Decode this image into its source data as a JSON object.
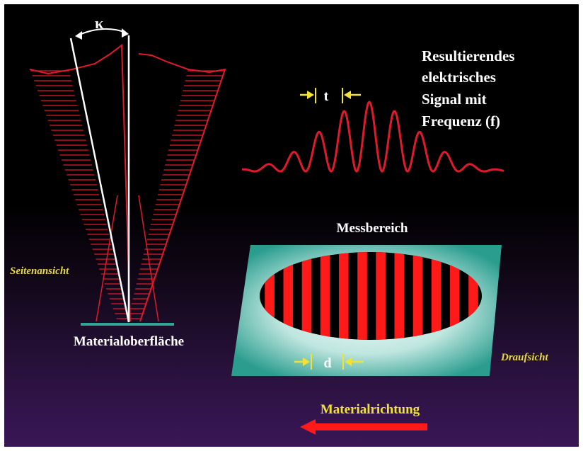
{
  "labels": {
    "kappa": "κ",
    "signal_line1": "Resultierendes",
    "signal_line2": "elektrisches",
    "signal_line3": "Signal mit",
    "signal_line4": "Frequenz (f)",
    "t_marker": "t",
    "messbereich": "Messbereich",
    "seitenansicht": "Seitenansicht",
    "materialoberflaeche": "Materialoberfläche",
    "d_marker": "d",
    "draufsicht": "Draufsicht",
    "materialrichtung": "Materialrichtung"
  },
  "colors": {
    "beam_red": "#e01a2a",
    "stripe_red": "#ff1a1a",
    "plate_teal": "#2fa597",
    "marker_yellow": "#f2e332",
    "arrow_red": "#ff1a1a"
  },
  "oval": {
    "stripe_count": 12
  }
}
